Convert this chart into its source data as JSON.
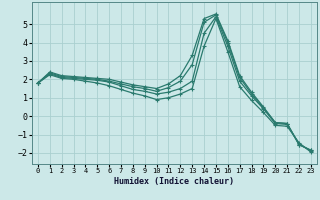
{
  "xlabel": "Humidex (Indice chaleur)",
  "ylabel": "",
  "background_color": "#cce8e8",
  "grid_color": "#aad0d0",
  "line_color": "#2a7a6e",
  "xlim": [
    -0.5,
    23.5
  ],
  "ylim": [
    -2.6,
    6.2
  ],
  "xticks": [
    0,
    1,
    2,
    3,
    4,
    5,
    6,
    7,
    8,
    9,
    10,
    11,
    12,
    13,
    14,
    15,
    16,
    17,
    18,
    19,
    20,
    21,
    22,
    23
  ],
  "yticks": [
    -2,
    -1,
    0,
    1,
    2,
    3,
    4,
    5
  ],
  "lines": [
    {
      "x": [
        0,
        1,
        2,
        3,
        4,
        5,
        6,
        7,
        8,
        9,
        10,
        11,
        12,
        13,
        14,
        15,
        16,
        17,
        18,
        19,
        20,
        21,
        22,
        23
      ],
      "y": [
        1.8,
        2.4,
        2.2,
        2.15,
        2.1,
        2.05,
        2.0,
        1.85,
        1.7,
        1.6,
        1.5,
        1.75,
        2.2,
        3.3,
        5.3,
        5.55,
        4.1,
        2.2,
        1.3,
        0.5,
        -0.35,
        -0.4,
        -1.55,
        -1.85
      ]
    },
    {
      "x": [
        0,
        1,
        2,
        3,
        4,
        5,
        6,
        7,
        8,
        9,
        10,
        11,
        12,
        13,
        14,
        15,
        16,
        17,
        18,
        19,
        20,
        21,
        22,
        23
      ],
      "y": [
        1.8,
        2.35,
        2.15,
        2.1,
        2.05,
        2.0,
        1.9,
        1.75,
        1.6,
        1.5,
        1.35,
        1.55,
        1.9,
        2.8,
        5.1,
        5.5,
        4.0,
        2.1,
        1.2,
        0.45,
        -0.35,
        -0.4,
        -1.55,
        -1.85
      ]
    },
    {
      "x": [
        0,
        1,
        2,
        3,
        4,
        5,
        6,
        7,
        8,
        9,
        10,
        11,
        12,
        13,
        14,
        15,
        16,
        17,
        18,
        19,
        20,
        21,
        22,
        23
      ],
      "y": [
        1.8,
        2.3,
        2.1,
        2.05,
        2.0,
        1.95,
        1.85,
        1.65,
        1.45,
        1.35,
        1.2,
        1.3,
        1.5,
        1.9,
        4.5,
        5.4,
        3.8,
        1.9,
        1.1,
        0.4,
        -0.4,
        -0.45,
        -1.5,
        -1.9
      ]
    },
    {
      "x": [
        0,
        1,
        2,
        3,
        4,
        5,
        6,
        7,
        8,
        9,
        10,
        11,
        12,
        13,
        14,
        15,
        16,
        17,
        18,
        19,
        20,
        21,
        22,
        23
      ],
      "y": [
        1.8,
        2.25,
        2.05,
        2.0,
        1.9,
        1.8,
        1.65,
        1.45,
        1.25,
        1.1,
        0.9,
        1.0,
        1.2,
        1.5,
        3.8,
        5.3,
        3.5,
        1.6,
        0.85,
        0.2,
        -0.5,
        -0.55,
        -1.45,
        -1.95
      ]
    }
  ]
}
